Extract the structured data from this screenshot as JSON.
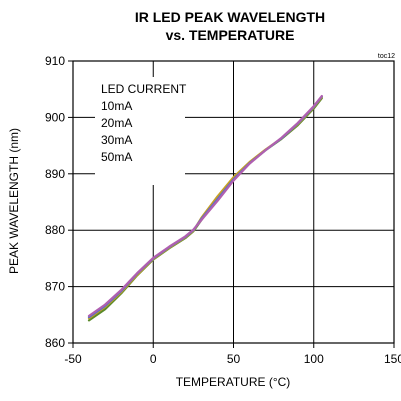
{
  "chart_data": {
    "type": "line",
    "title_line1": "IR LED PEAK WAVELENGTH",
    "title_line2": "vs. TEMPERATURE",
    "tag": "toc12",
    "xlabel": "TEMPERATURE (°C)",
    "ylabel": "PEAK WAVELENGTH (nm)",
    "xlim": [
      -50,
      150
    ],
    "ylim": [
      860,
      910
    ],
    "xticks": [
      -50,
      0,
      50,
      100,
      150
    ],
    "yticks": [
      860,
      870,
      880,
      890,
      900,
      910
    ],
    "xtick_labels": [
      "-50",
      "0",
      "50",
      "100",
      "150"
    ],
    "ytick_labels": [
      "860",
      "870",
      "880",
      "890",
      "900",
      "910"
    ],
    "grid": true,
    "legend_title": "LED CURRENT",
    "legend_position": "top-left",
    "series": [
      {
        "name": "10mA",
        "color": "#5a8a2a",
        "x": [
          -40,
          -30,
          -20,
          -10,
          0,
          10,
          20,
          25,
          30,
          40,
          50,
          60,
          70,
          80,
          90,
          100,
          105
        ],
        "y": [
          864.0,
          866.0,
          868.8,
          872.0,
          874.8,
          876.8,
          878.6,
          879.8,
          881.8,
          885.8,
          889.2,
          892.0,
          894.2,
          896.2,
          898.6,
          901.6,
          903.4
        ]
      },
      {
        "name": "20mA",
        "color": "#c8a022",
        "x": [
          -40,
          -30,
          -20,
          -10,
          0,
          10,
          20,
          25,
          30,
          40,
          50,
          60,
          70,
          80,
          90,
          100,
          105
        ],
        "y": [
          864.4,
          866.4,
          869.0,
          872.1,
          874.9,
          876.9,
          878.7,
          879.9,
          882.2,
          886.0,
          889.4,
          892.1,
          894.3,
          896.3,
          898.8,
          901.8,
          903.6
        ]
      },
      {
        "name": "30mA",
        "color": "#5a6ec8",
        "x": [
          -40,
          -30,
          -20,
          -10,
          0,
          10,
          20,
          25,
          30,
          40,
          50,
          60,
          70,
          80,
          90,
          100,
          105
        ],
        "y": [
          864.6,
          866.6,
          869.2,
          872.3,
          875.0,
          877.0,
          878.8,
          880.0,
          882.0,
          885.5,
          889.0,
          891.9,
          894.2,
          896.3,
          898.9,
          901.9,
          903.7
        ]
      },
      {
        "name": "50mA",
        "color": "#b060b0",
        "x": [
          -40,
          -30,
          -20,
          -10,
          0,
          10,
          20,
          25,
          30,
          40,
          50,
          60,
          70,
          80,
          90,
          100,
          105
        ],
        "y": [
          864.8,
          866.8,
          869.4,
          872.4,
          875.1,
          877.1,
          878.9,
          880.1,
          881.8,
          885.2,
          888.8,
          891.8,
          894.2,
          896.4,
          899.0,
          902.0,
          903.8
        ]
      }
    ]
  }
}
